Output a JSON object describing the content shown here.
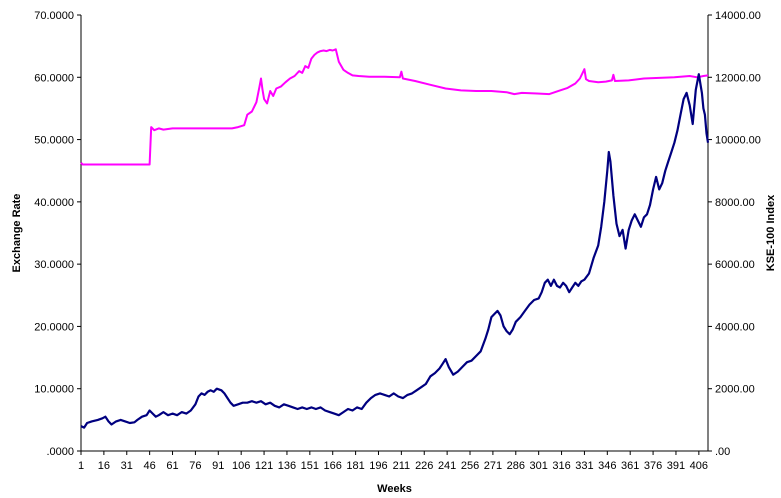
{
  "chart_data": {
    "type": "line",
    "xlabel": "Weeks",
    "ylabel_left": "Exchange Rate",
    "ylabel_right": "KSE-100 Index",
    "x_ticks": [
      "1",
      "16",
      "31",
      "46",
      "61",
      "76",
      "91",
      "106",
      "121",
      "136",
      "151",
      "166",
      "181",
      "196",
      "211",
      "226",
      "241",
      "256",
      "271",
      "286",
      "301",
      "316",
      "331",
      "346",
      "361",
      "376",
      "391",
      "406"
    ],
    "y_left_ticks": [
      "70.0000",
      "60.0000",
      "50.0000",
      "40.0000",
      "30.0000",
      "20.0000",
      "10.0000",
      ".0000"
    ],
    "y_right_ticks": [
      "14000.00",
      "12000.00",
      "10000.00",
      "8000.00",
      "6000.00",
      "4000.00",
      "2000.00",
      ".00"
    ],
    "ylim_left": [
      0,
      70
    ],
    "ylim_right": [
      0,
      14000
    ],
    "xlim": [
      1,
      412
    ],
    "grid": false,
    "series": [
      {
        "axis": "left",
        "color": "#ff00ff",
        "points": [
          [
            1,
            46.3
          ],
          [
            2,
            46.0
          ],
          [
            10,
            46.0
          ],
          [
            20,
            46.0
          ],
          [
            30,
            46.0
          ],
          [
            40,
            46.0
          ],
          [
            45,
            46.0
          ],
          [
            46,
            46.0
          ],
          [
            47,
            52.0
          ],
          [
            49,
            51.5
          ],
          [
            52,
            51.8
          ],
          [
            55,
            51.6
          ],
          [
            58,
            51.7
          ],
          [
            61,
            51.8
          ],
          [
            70,
            51.8
          ],
          [
            80,
            51.8
          ],
          [
            90,
            51.8
          ],
          [
            100,
            51.8
          ],
          [
            104,
            52.0
          ],
          [
            108,
            52.3
          ],
          [
            110,
            54.0
          ],
          [
            113,
            54.5
          ],
          [
            116,
            56.0
          ],
          [
            118,
            58.5
          ],
          [
            119,
            59.8
          ],
          [
            120,
            58.0
          ],
          [
            121,
            56.5
          ],
          [
            123,
            55.8
          ],
          [
            125,
            57.8
          ],
          [
            127,
            57.0
          ],
          [
            129,
            58.2
          ],
          [
            132,
            58.5
          ],
          [
            135,
            59.2
          ],
          [
            138,
            59.8
          ],
          [
            141,
            60.2
          ],
          [
            144,
            61.0
          ],
          [
            146,
            60.7
          ],
          [
            148,
            61.8
          ],
          [
            150,
            61.5
          ],
          [
            152,
            63.0
          ],
          [
            154,
            63.6
          ],
          [
            156,
            64.0
          ],
          [
            158,
            64.2
          ],
          [
            160,
            64.3
          ],
          [
            162,
            64.2
          ],
          [
            164,
            64.4
          ],
          [
            166,
            64.3
          ],
          [
            168,
            64.5
          ],
          [
            170,
            62.5
          ],
          [
            173,
            61.2
          ],
          [
            176,
            60.7
          ],
          [
            179,
            60.3
          ],
          [
            183,
            60.2
          ],
          [
            190,
            60.1
          ],
          [
            200,
            60.1
          ],
          [
            210,
            60.0
          ],
          [
            211,
            60.9
          ],
          [
            212,
            59.8
          ],
          [
            220,
            59.4
          ],
          [
            230,
            58.8
          ],
          [
            240,
            58.2
          ],
          [
            250,
            57.9
          ],
          [
            260,
            57.8
          ],
          [
            270,
            57.8
          ],
          [
            280,
            57.6
          ],
          [
            285,
            57.3
          ],
          [
            290,
            57.5
          ],
          [
            300,
            57.4
          ],
          [
            308,
            57.3
          ],
          [
            315,
            57.9
          ],
          [
            320,
            58.3
          ],
          [
            325,
            59.0
          ],
          [
            328,
            59.8
          ],
          [
            331,
            61.3
          ],
          [
            332,
            59.7
          ],
          [
            334,
            59.4
          ],
          [
            340,
            59.2
          ],
          [
            345,
            59.3
          ],
          [
            349,
            59.5
          ],
          [
            350,
            60.4
          ],
          [
            351,
            59.4
          ],
          [
            360,
            59.5
          ],
          [
            370,
            59.8
          ],
          [
            380,
            59.9
          ],
          [
            390,
            60.0
          ],
          [
            400,
            60.2
          ],
          [
            405,
            60.0
          ],
          [
            409,
            60.2
          ],
          [
            412,
            60.3
          ]
        ]
      },
      {
        "axis": "right",
        "color": "#000080",
        "points": [
          [
            1,
            800
          ],
          [
            3,
            750
          ],
          [
            5,
            900
          ],
          [
            8,
            950
          ],
          [
            12,
            1000
          ],
          [
            15,
            1050
          ],
          [
            17,
            1100
          ],
          [
            19,
            950
          ],
          [
            21,
            850
          ],
          [
            24,
            950
          ],
          [
            27,
            1000
          ],
          [
            30,
            950
          ],
          [
            33,
            900
          ],
          [
            36,
            920
          ],
          [
            38,
            1000
          ],
          [
            41,
            1100
          ],
          [
            44,
            1150
          ],
          [
            46,
            1300
          ],
          [
            48,
            1200
          ],
          [
            50,
            1100
          ],
          [
            52,
            1150
          ],
          [
            55,
            1250
          ],
          [
            58,
            1150
          ],
          [
            61,
            1200
          ],
          [
            64,
            1150
          ],
          [
            67,
            1250
          ],
          [
            70,
            1200
          ],
          [
            73,
            1300
          ],
          [
            76,
            1500
          ],
          [
            78,
            1750
          ],
          [
            80,
            1850
          ],
          [
            82,
            1800
          ],
          [
            84,
            1900
          ],
          [
            86,
            1950
          ],
          [
            88,
            1900
          ],
          [
            90,
            2000
          ],
          [
            93,
            1950
          ],
          [
            95,
            1850
          ],
          [
            97,
            1700
          ],
          [
            99,
            1550
          ],
          [
            101,
            1450
          ],
          [
            104,
            1500
          ],
          [
            107,
            1550
          ],
          [
            110,
            1550
          ],
          [
            113,
            1600
          ],
          [
            116,
            1550
          ],
          [
            119,
            1600
          ],
          [
            122,
            1500
          ],
          [
            125,
            1550
          ],
          [
            128,
            1450
          ],
          [
            131,
            1400
          ],
          [
            134,
            1500
          ],
          [
            137,
            1450
          ],
          [
            140,
            1400
          ],
          [
            143,
            1350
          ],
          [
            146,
            1400
          ],
          [
            149,
            1350
          ],
          [
            152,
            1400
          ],
          [
            155,
            1350
          ],
          [
            158,
            1400
          ],
          [
            161,
            1300
          ],
          [
            164,
            1250
          ],
          [
            167,
            1200
          ],
          [
            170,
            1150
          ],
          [
            173,
            1250
          ],
          [
            176,
            1350
          ],
          [
            179,
            1300
          ],
          [
            182,
            1400
          ],
          [
            185,
            1350
          ],
          [
            188,
            1550
          ],
          [
            191,
            1700
          ],
          [
            194,
            1800
          ],
          [
            197,
            1850
          ],
          [
            200,
            1800
          ],
          [
            203,
            1750
          ],
          [
            206,
            1850
          ],
          [
            209,
            1750
          ],
          [
            212,
            1700
          ],
          [
            215,
            1800
          ],
          [
            218,
            1850
          ],
          [
            221,
            1950
          ],
          [
            224,
            2050
          ],
          [
            227,
            2150
          ],
          [
            230,
            2400
          ],
          [
            233,
            2500
          ],
          [
            236,
            2650
          ],
          [
            238,
            2800
          ],
          [
            240,
            2950
          ],
          [
            242,
            2700
          ],
          [
            245,
            2450
          ],
          [
            248,
            2550
          ],
          [
            251,
            2700
          ],
          [
            254,
            2850
          ],
          [
            257,
            2900
          ],
          [
            260,
            3050
          ],
          [
            263,
            3200
          ],
          [
            266,
            3600
          ],
          [
            268,
            3900
          ],
          [
            270,
            4300
          ],
          [
            272,
            4400
          ],
          [
            274,
            4500
          ],
          [
            276,
            4350
          ],
          [
            278,
            4000
          ],
          [
            280,
            3850
          ],
          [
            282,
            3750
          ],
          [
            284,
            3900
          ],
          [
            286,
            4150
          ],
          [
            289,
            4300
          ],
          [
            292,
            4500
          ],
          [
            295,
            4700
          ],
          [
            298,
            4850
          ],
          [
            301,
            4900
          ],
          [
            303,
            5100
          ],
          [
            305,
            5400
          ],
          [
            307,
            5500
          ],
          [
            309,
            5300
          ],
          [
            311,
            5500
          ],
          [
            313,
            5300
          ],
          [
            315,
            5250
          ],
          [
            317,
            5400
          ],
          [
            319,
            5300
          ],
          [
            321,
            5100
          ],
          [
            323,
            5250
          ],
          [
            325,
            5400
          ],
          [
            327,
            5300
          ],
          [
            329,
            5450
          ],
          [
            331,
            5500
          ],
          [
            334,
            5700
          ],
          [
            337,
            6200
          ],
          [
            340,
            6600
          ],
          [
            342,
            7200
          ],
          [
            344,
            8000
          ],
          [
            346,
            9000
          ],
          [
            347,
            9600
          ],
          [
            348,
            9300
          ],
          [
            350,
            8200
          ],
          [
            352,
            7300
          ],
          [
            354,
            6900
          ],
          [
            356,
            7100
          ],
          [
            358,
            6500
          ],
          [
            360,
            7100
          ],
          [
            362,
            7400
          ],
          [
            364,
            7600
          ],
          [
            366,
            7400
          ],
          [
            368,
            7200
          ],
          [
            370,
            7500
          ],
          [
            372,
            7600
          ],
          [
            374,
            7900
          ],
          [
            376,
            8400
          ],
          [
            378,
            8800
          ],
          [
            380,
            8400
          ],
          [
            382,
            8600
          ],
          [
            384,
            9000
          ],
          [
            386,
            9300
          ],
          [
            388,
            9600
          ],
          [
            390,
            9900
          ],
          [
            392,
            10300
          ],
          [
            394,
            10800
          ],
          [
            396,
            11300
          ],
          [
            398,
            11500
          ],
          [
            400,
            11100
          ],
          [
            402,
            10500
          ],
          [
            404,
            11600
          ],
          [
            406,
            12100
          ],
          [
            408,
            11500
          ],
          [
            409,
            11000
          ],
          [
            410,
            10800
          ],
          [
            411,
            10200
          ],
          [
            412,
            9900
          ]
        ]
      }
    ]
  }
}
